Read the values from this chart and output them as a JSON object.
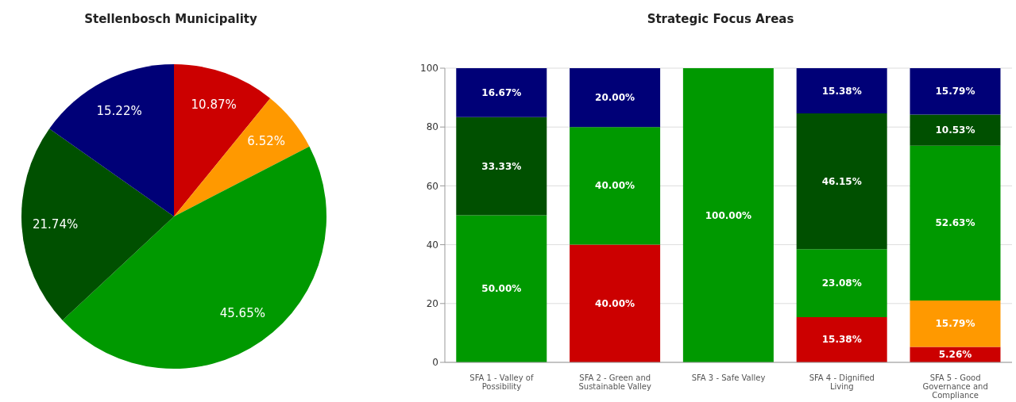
{
  "chart_data": [
    {
      "type": "pie",
      "title": "Stellenbosch Municipality",
      "categories": [
        null,
        null,
        null,
        null,
        null
      ],
      "values": [
        10.87,
        6.52,
        45.65,
        21.74,
        15.22
      ],
      "colors": [
        "#cc0000",
        "#ff9900",
        "#009900",
        "#005000",
        "#000077"
      ],
      "value_labels": [
        "10.87%",
        "6.52%",
        "45.65%",
        "21.74%",
        "15.22%"
      ]
    },
    {
      "type": "bar",
      "title": "Strategic Focus Areas",
      "categories": [
        "SFA 1 - Valley of Possibility",
        "SFA 2 - Green and Sustainable Valley",
        "SFA 3 - Safe Valley",
        "SFA 4 - Dignified Living",
        "SFA 5 - Good Governance and Compliance"
      ],
      "stacked": true,
      "series": [
        {
          "color": "#cc0000",
          "values": [
            null,
            40,
            null,
            15.38,
            5.26
          ],
          "value_labels": [
            null,
            "40.00%",
            null,
            "15.38%",
            "5.26%"
          ]
        },
        {
          "color": "#ff9900",
          "values": [
            null,
            null,
            null,
            null,
            15.79
          ],
          "value_labels": [
            null,
            null,
            null,
            null,
            "15.79%"
          ]
        },
        {
          "color": "#009900",
          "values": [
            50,
            40,
            100,
            23.08,
            52.63
          ],
          "value_labels": [
            "50.00%",
            "40.00%",
            "100.00%",
            "23.08%",
            "52.63%"
          ]
        },
        {
          "color": "#005000",
          "values": [
            33.33,
            null,
            null,
            46.15,
            10.53
          ],
          "value_labels": [
            "33.33%",
            null,
            null,
            "46.15%",
            "10.53%"
          ]
        },
        {
          "color": "#000077",
          "values": [
            16.67,
            20,
            null,
            15.38,
            15.79
          ],
          "value_labels": [
            "16.67%",
            "20.00%",
            null,
            "15.38%",
            "15.79%"
          ]
        }
      ],
      "ylim": [
        0,
        100
      ],
      "yticks": [
        0,
        20,
        40,
        60,
        80,
        100
      ],
      "grid": "y"
    }
  ]
}
